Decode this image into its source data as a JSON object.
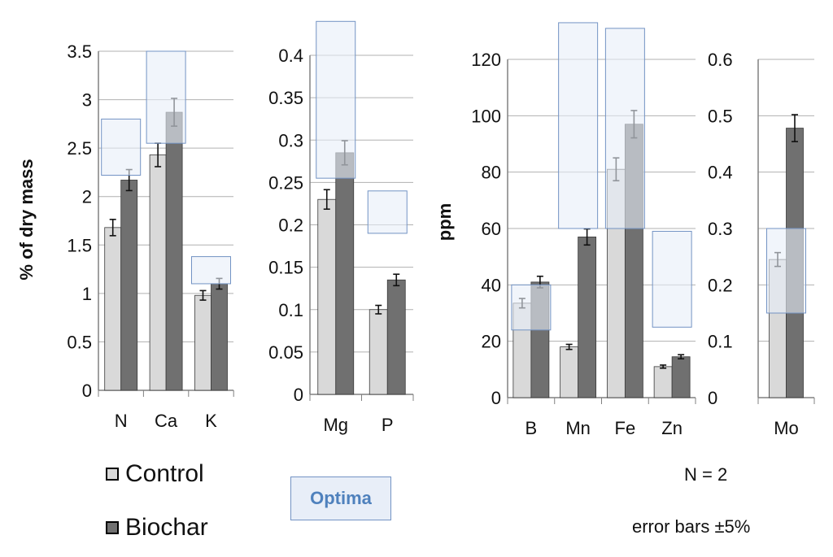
{
  "legend": {
    "control_label": "Control",
    "biochar_label": "Biochar",
    "optima_label": "Optima"
  },
  "notes": {
    "n_label": "N = 2",
    "error_label": "error bars ±5%"
  },
  "colors": {
    "control": "#d9d9d9",
    "biochar": "#707070",
    "optima_fill": "#e8eef8",
    "optima_stroke": "#7393c4",
    "optima_text": "#4f81bd",
    "grid": "#b0b0b0",
    "axis": "#808080"
  },
  "chart_data": [
    {
      "type": "bar",
      "ylabel": "% of dry mass",
      "ylim": [
        0,
        3.5
      ],
      "yticks": [
        "0",
        "0.5",
        "1",
        "1.5",
        "2",
        "2.5",
        "3",
        "3.5"
      ],
      "grid": true,
      "categories": [
        "N",
        "Ca",
        "K"
      ],
      "series": [
        {
          "name": "Control",
          "values": [
            1.68,
            2.43,
            0.98
          ]
        },
        {
          "name": "Biochar",
          "values": [
            2.17,
            2.87,
            1.1
          ]
        }
      ],
      "optima": [
        [
          2.22,
          2.8
        ],
        [
          2.55,
          3.5
        ],
        [
          1.1,
          1.38
        ]
      ],
      "error_bars": "±5%"
    },
    {
      "type": "bar",
      "ylabel": "",
      "ylim": [
        0,
        0.4
      ],
      "yticks": [
        "0",
        "0.05",
        "0.1",
        "0.15",
        "0.2",
        "0.25",
        "0.3",
        "0.35",
        "0.4"
      ],
      "grid": true,
      "categories": [
        "Mg",
        "P"
      ],
      "series": [
        {
          "name": "Control",
          "values": [
            0.23,
            0.1
          ]
        },
        {
          "name": "Biochar",
          "values": [
            0.285,
            0.135
          ]
        }
      ],
      "optima": [
        [
          0.255,
          0.44
        ],
        [
          0.19,
          0.24
        ]
      ],
      "error_bars": "±5%"
    },
    {
      "type": "bar",
      "ylabel": "ppm",
      "ylim": [
        0,
        120
      ],
      "yticks": [
        "0",
        "20",
        "40",
        "60",
        "80",
        "100",
        "120"
      ],
      "grid": true,
      "categories": [
        "B",
        "Mn",
        "Fe",
        "Zn"
      ],
      "series": [
        {
          "name": "Control",
          "values": [
            33.5,
            18,
            81,
            11
          ]
        },
        {
          "name": "Biochar",
          "values": [
            41,
            57,
            97,
            14.5
          ]
        }
      ],
      "optima": [
        [
          24,
          40
        ],
        [
          60,
          133
        ],
        [
          60,
          131
        ],
        [
          25,
          59
        ]
      ],
      "error_bars": "±5%"
    },
    {
      "type": "bar",
      "ylabel": "",
      "ylim": [
        0,
        0.6
      ],
      "yticks": [
        "0",
        "0.1",
        "0.2",
        "0.3",
        "0.4",
        "0.5",
        "0.6"
      ],
      "grid": true,
      "categories": [
        "Mo"
      ],
      "series": [
        {
          "name": "Control",
          "values": [
            0.245
          ]
        },
        {
          "name": "Biochar",
          "values": [
            0.478
          ]
        }
      ],
      "optima": [
        [
          0.15,
          0.3
        ]
      ],
      "error_bars": "±5%"
    }
  ]
}
